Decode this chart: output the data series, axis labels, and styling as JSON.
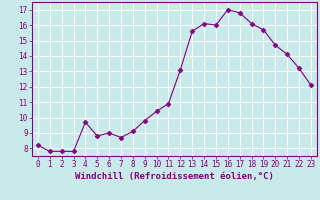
{
  "x": [
    0,
    1,
    2,
    3,
    4,
    5,
    6,
    7,
    8,
    9,
    10,
    11,
    12,
    13,
    14,
    15,
    16,
    17,
    18,
    19,
    20,
    21,
    22,
    23
  ],
  "y": [
    8.2,
    7.8,
    7.8,
    7.8,
    9.7,
    8.8,
    9.0,
    8.7,
    9.1,
    9.8,
    10.4,
    10.9,
    13.1,
    15.6,
    16.1,
    16.0,
    17.0,
    16.8,
    16.1,
    15.7,
    14.7,
    14.1,
    13.2,
    12.1
  ],
  "xlabel": "Windchill (Refroidissement éolien,°C)",
  "ylim": [
    7.5,
    17.5
  ],
  "xlim": [
    -0.5,
    23.5
  ],
  "yticks": [
    8,
    9,
    10,
    11,
    12,
    13,
    14,
    15,
    16,
    17
  ],
  "xticks": [
    0,
    1,
    2,
    3,
    4,
    5,
    6,
    7,
    8,
    9,
    10,
    11,
    12,
    13,
    14,
    15,
    16,
    17,
    18,
    19,
    20,
    21,
    22,
    23
  ],
  "line_color": "#800080",
  "marker": "D",
  "marker_size": 2.5,
  "bg_color": "#c8eaea",
  "grid_color": "#ffffff",
  "label_color": "#800080",
  "tick_font_size": 5.5,
  "xlabel_font_size": 6.5
}
